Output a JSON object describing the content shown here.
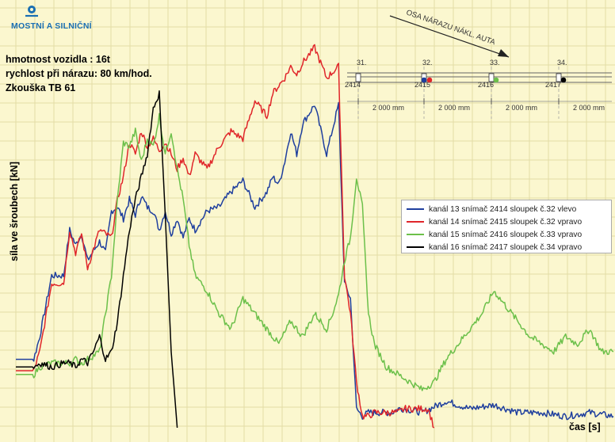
{
  "logo": {
    "text": "MOSTNÍ A SILNIČNÍ",
    "color": "#1a6fb3"
  },
  "info": {
    "line1": "hmotnost vozidla : 16t",
    "line2": "rychlost při nárazu: 80 km/hod.",
    "line3": "Zkouška TB 61"
  },
  "diagram": {
    "arrow_label": "OSA NÁRAZU NÁKL. AUTA",
    "posts": [
      "31.",
      "32.",
      "33.",
      "34."
    ],
    "sensors": [
      "2414",
      "2415",
      "2416",
      "2417"
    ],
    "spacing_labels": [
      "2 000 mm",
      "2 000 mm",
      "2 000 mm",
      "2 000 mm"
    ]
  },
  "chart_data": {
    "type": "line",
    "xlabel": "čas [s]",
    "ylabel": "síla ve šroubech [kN]",
    "title": "",
    "grid": true,
    "x_ticks_shown": false,
    "y_ticks_shown": false,
    "units_note": "axis values not printed; values below are relative signal levels on a 0-100 scale",
    "ylim": [
      0,
      100
    ],
    "xlim": [
      0,
      100
    ],
    "legend_position": "right",
    "series": [
      {
        "name": "kanál 13 snímač 2414 sloupek č.32 vlevo",
        "color": "#1f3f9e",
        "x": [
          0,
          3,
          4,
          6,
          8,
          9,
          10,
          11,
          12,
          14,
          15,
          16,
          17,
          18,
          19,
          20,
          21,
          22,
          23,
          24,
          25,
          26,
          27,
          28,
          29,
          30,
          32,
          34,
          36,
          38,
          40,
          42,
          43,
          44,
          45,
          46,
          47,
          48,
          50,
          52,
          54,
          55,
          56,
          57,
          58,
          59,
          60,
          61,
          62,
          63,
          64,
          65,
          68,
          72,
          76,
          80,
          84,
          88,
          92,
          96,
          100
        ],
        "values": [
          18,
          18,
          24,
          40,
          40,
          52,
          48,
          51,
          44,
          49,
          46,
          57,
          58,
          55,
          60,
          56,
          61,
          58,
          57,
          52,
          57,
          51,
          55,
          50,
          55,
          52,
          57,
          58,
          62,
          65,
          58,
          62,
          66,
          64,
          70,
          78,
          72,
          80,
          85,
          72,
          85,
          38,
          34,
          5,
          3,
          4,
          4,
          4,
          4,
          4,
          5,
          5,
          4,
          7,
          5,
          6,
          4,
          4,
          3,
          4,
          3
        ]
      },
      {
        "name": "kanál 14 snímač 2415 sloupek č.32 vpravo",
        "color": "#e0262a",
        "x": [
          0,
          3,
          4,
          6,
          8,
          9,
          10,
          11,
          12,
          14,
          16,
          17,
          18,
          19,
          20,
          21,
          22,
          23,
          24,
          25,
          26,
          27,
          28,
          29,
          30,
          32,
          34,
          36,
          38,
          40,
          42,
          43,
          44,
          45,
          46,
          47,
          48,
          50,
          52,
          54,
          55,
          56,
          57,
          58,
          59,
          60,
          62,
          63,
          64,
          65,
          66,
          67,
          68,
          69,
          70
        ],
        "values": [
          15,
          15,
          20,
          38,
          38,
          52,
          46,
          51,
          42,
          52,
          50,
          60,
          66,
          75,
          72,
          78,
          74,
          76,
          73,
          75,
          72,
          68,
          71,
          66,
          72,
          68,
          74,
          78,
          76,
          86,
          82,
          88,
          90,
          92,
          95,
          93,
          96,
          100,
          92,
          95,
          40,
          30,
          12,
          3,
          3,
          4,
          4,
          4,
          4,
          5,
          5,
          5,
          5,
          5,
          0
        ]
      },
      {
        "name": "kanál 15 snímač 2416 sloupek č.33 vpravo",
        "color": "#6cc04a",
        "x": [
          0,
          3,
          4,
          6,
          8,
          9,
          10,
          11,
          12,
          14,
          16,
          17,
          18,
          19,
          20,
          21,
          22,
          23,
          24,
          25,
          26,
          27,
          28,
          29,
          30,
          32,
          34,
          36,
          38,
          40,
          42,
          44,
          46,
          48,
          50,
          52,
          53,
          54,
          55,
          56,
          57,
          58,
          59,
          60,
          62,
          64,
          66,
          68,
          70,
          72,
          74,
          76,
          78,
          80,
          82,
          84,
          86,
          88,
          90,
          92,
          94,
          96,
          98,
          100
        ],
        "values": [
          14,
          14,
          16,
          17,
          17,
          17,
          18,
          17,
          18,
          20,
          40,
          60,
          75,
          74,
          78,
          70,
          76,
          74,
          82,
          72,
          78,
          68,
          60,
          48,
          40,
          36,
          30,
          26,
          34,
          30,
          26,
          22,
          28,
          24,
          30,
          26,
          30,
          35,
          44,
          50,
          66,
          58,
          30,
          22,
          16,
          14,
          12,
          10,
          12,
          18,
          22,
          26,
          30,
          36,
          32,
          28,
          24,
          22,
          20,
          24,
          22,
          26,
          20,
          20
        ]
      },
      {
        "name": "kanál 16 snímač 2417 sloupek č.34 vpravo",
        "color": "#000000",
        "x": [
          0,
          3,
          4,
          6,
          8,
          9,
          10,
          11,
          12,
          13,
          14,
          15,
          16,
          17,
          18,
          19,
          20,
          21,
          22,
          23,
          24,
          25,
          26,
          27
        ],
        "values": [
          16,
          16,
          17,
          16,
          17,
          17,
          16,
          18,
          17,
          20,
          24,
          18,
          20,
          28,
          40,
          52,
          60,
          66,
          72,
          84,
          88,
          56,
          20,
          0
        ]
      }
    ]
  }
}
